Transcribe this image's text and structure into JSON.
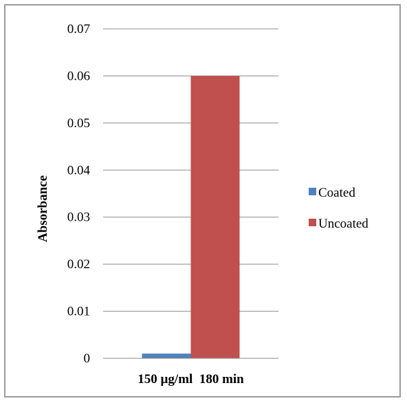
{
  "chart_data": {
    "type": "bar",
    "categories": [
      "150 µg/ml  180 min"
    ],
    "series": [
      {
        "name": "Coated",
        "values": [
          0.001
        ],
        "color": "#4f81bd"
      },
      {
        "name": "Uncoated",
        "values": [
          0.06
        ],
        "color": "#c0504d"
      }
    ],
    "xlabel": "",
    "ylabel": "Absorbance",
    "ylim": [
      0,
      0.07
    ],
    "yticks": [
      "0",
      "0.01",
      "0.02",
      "0.03",
      "0.04",
      "0.05",
      "0.06",
      "0.07"
    ],
    "grid": true,
    "legend_position": "right"
  }
}
